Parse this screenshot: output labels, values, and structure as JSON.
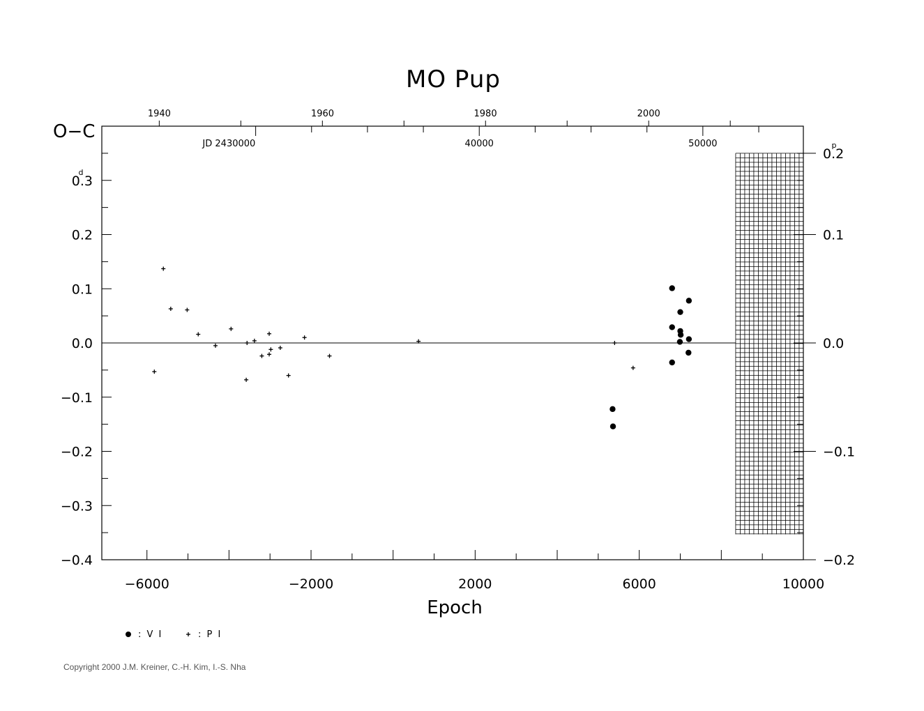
{
  "chart_data": {
    "type": "scatter",
    "title": "MO Pup",
    "xlabel": "Epoch",
    "ylabel": "O−C",
    "left_axis_unit_tick": "0.3",
    "left_axis_unit_sup": "d",
    "right_axis_unit_tick": "0.2",
    "right_axis_unit_sup": "p",
    "xlim": [
      -7100,
      10000
    ],
    "ylim": [
      -0.4,
      0.4
    ],
    "right_ylim": [
      -0.2,
      0.2
    ],
    "x_ticks": [
      {
        "value": -6000,
        "label": "−6000"
      },
      {
        "value": -2000,
        "label": "−2000"
      },
      {
        "value": 2000,
        "label": "2000"
      },
      {
        "value": 6000,
        "label": "6000"
      },
      {
        "value": 10000,
        "label": "10000"
      }
    ],
    "y_ticks": [
      {
        "value": 0.2,
        "label": "0.2"
      },
      {
        "value": 0.1,
        "label": "0.1"
      },
      {
        "value": 0.0,
        "label": "0.0"
      },
      {
        "value": -0.1,
        "label": "−0.1"
      },
      {
        "value": -0.2,
        "label": "−0.2"
      },
      {
        "value": -0.3,
        "label": "−0.3"
      },
      {
        "value": -0.4,
        "label": "−0.4"
      }
    ],
    "right_y_ticks": [
      {
        "value": 0.1,
        "label": "0.1"
      },
      {
        "value": 0.0,
        "label": "0.0"
      },
      {
        "value": -0.1,
        "label": "−0.1"
      },
      {
        "value": -0.2,
        "label": "−0.2"
      }
    ],
    "top_year_labels": [
      {
        "epoch": -5700,
        "label": "1940"
      },
      {
        "epoch": -1720,
        "label": "1960"
      },
      {
        "epoch": 2250,
        "label": "1980"
      },
      {
        "epoch": 6230,
        "label": "2000"
      }
    ],
    "jd_labels": [
      {
        "epoch": -4000,
        "label": "JD  2430000"
      },
      {
        "epoch": 2100,
        "label": "40000"
      },
      {
        "epoch": 7550,
        "label": "50000"
      }
    ],
    "zero_line_y": 0.0,
    "shaded_region": {
      "x_from": 8350,
      "x_to": 10350,
      "y_from": -0.353,
      "y_to": 0.35
    },
    "series": [
      {
        "name": ": V I",
        "marker": "dot",
        "points": [
          [
            5350,
            -0.122
          ],
          [
            5360,
            -0.154
          ],
          [
            6800,
            0.101
          ],
          [
            6800,
            0.029
          ],
          [
            6800,
            -0.036
          ],
          [
            7000,
            0.057
          ],
          [
            7000,
            0.022
          ],
          [
            7010,
            0.015
          ],
          [
            6990,
            0.002
          ],
          [
            7210,
            0.078
          ],
          [
            7210,
            0.007
          ],
          [
            7200,
            -0.018
          ]
        ]
      },
      {
        "name": ": P I",
        "marker": "plus",
        "points": [
          [
            -5820,
            -0.053
          ],
          [
            -5600,
            0.137
          ],
          [
            -5420,
            0.063
          ],
          [
            -5020,
            0.061
          ],
          [
            -4750,
            0.016
          ],
          [
            -4330,
            -0.005
          ],
          [
            -3950,
            0.026
          ],
          [
            -3580,
            -0.068
          ],
          [
            -3560,
            0.0
          ],
          [
            -3380,
            0.004
          ],
          [
            -3200,
            -0.024
          ],
          [
            -3020,
            0.017
          ],
          [
            -3020,
            -0.021
          ],
          [
            -2980,
            -0.012
          ],
          [
            -2750,
            -0.009
          ],
          [
            -2550,
            -0.06
          ],
          [
            -2160,
            0.01
          ],
          [
            -1550,
            -0.024
          ],
          [
            620,
            0.003
          ],
          [
            5400,
            0.0
          ],
          [
            5850,
            -0.046
          ]
        ]
      }
    ]
  },
  "legend": {
    "items": [
      {
        "marker": "dot",
        "label": ": V I"
      },
      {
        "marker": "plus",
        "label": ": P I"
      }
    ]
  },
  "copyright": "Copyright 2000 J.M. Kreiner, C.-H. Kim, I.-S. Nha"
}
